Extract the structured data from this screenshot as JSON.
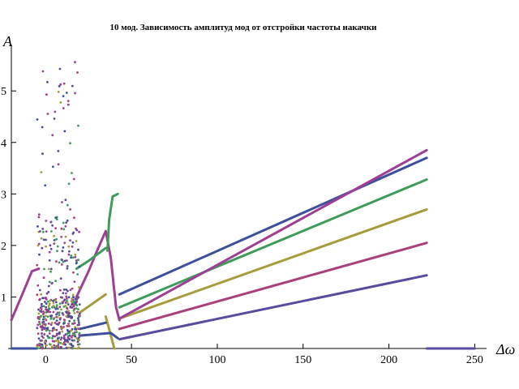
{
  "chart_data": {
    "type": "scatter",
    "title": "10 мод. Зависимость амплитуд мод от отстройки частоты накачки",
    "xlabel": "Δω",
    "ylabel": "A",
    "xlim": [
      -20,
      255
    ],
    "ylim": [
      0,
      5.9
    ],
    "x_ticks": [
      "0",
      "50",
      "100",
      "150",
      "200",
      "250"
    ],
    "x_tick_values": [
      0,
      50,
      100,
      150,
      200,
      250
    ],
    "y_ticks": [
      "1",
      "2",
      "3",
      "4",
      "5"
    ],
    "y_tick_values": [
      1,
      2,
      3,
      4,
      5
    ],
    "grid": false,
    "series": [
      {
        "color": "#5B4B9E",
        "points": [
          [
            43,
            0.18
          ],
          [
            222,
            1.42
          ]
        ]
      },
      {
        "color": "#A8407A",
        "points": [
          [
            43,
            0.38
          ],
          [
            222,
            2.05
          ]
        ]
      },
      {
        "color": "#A59C3C",
        "points": [
          [
            43,
            0.58
          ],
          [
            222,
            2.7
          ]
        ]
      },
      {
        "color": "#3F9B5A",
        "points": [
          [
            43,
            0.8
          ],
          [
            222,
            3.28
          ]
        ]
      },
      {
        "color": "#3E4F9C",
        "points": [
          [
            43,
            1.05
          ],
          [
            222,
            3.7
          ]
        ]
      },
      {
        "color": "#9C3F95",
        "points": [
          [
            43,
            0.58
          ],
          [
            222,
            3.85
          ]
        ]
      },
      {
        "color": "#9C3F95",
        "points": [
          [
            -20,
            0.55
          ],
          [
            -13,
            1.1
          ],
          [
            -8,
            1.5
          ],
          [
            -4,
            1.55
          ]
        ]
      },
      {
        "color": "#9C3F95",
        "points": [
          [
            18,
            1.0
          ],
          [
            25,
            1.5
          ],
          [
            30,
            1.9
          ],
          [
            35,
            2.28
          ],
          [
            38,
            1.75
          ],
          [
            41,
            0.8
          ],
          [
            43,
            0.55
          ]
        ]
      },
      {
        "color": "#3F9B5A",
        "points": [
          [
            18,
            1.55
          ],
          [
            25,
            1.7
          ],
          [
            35,
            1.95
          ]
        ]
      },
      {
        "color": "#3F9B5A",
        "points": [
          [
            36,
            1.9
          ],
          [
            37,
            2.5
          ],
          [
            39,
            2.95
          ],
          [
            42,
            3.0
          ]
        ]
      },
      {
        "color": "#A59C3C",
        "points": [
          [
            20,
            0.7
          ],
          [
            35,
            1.05
          ]
        ]
      },
      {
        "color": "#A59C3C",
        "points": [
          [
            35,
            0.62
          ],
          [
            40,
            0.0
          ]
        ]
      },
      {
        "color": "#3E4F9C",
        "points": [
          [
            20,
            0.38
          ],
          [
            35,
            0.5
          ]
        ]
      },
      {
        "color": "#3E4F9C",
        "points": [
          [
            20,
            0.25
          ],
          [
            38,
            0.3
          ],
          [
            42,
            0.2
          ]
        ]
      },
      {
        "color": "#3E4F9C",
        "points": [
          [
            -20,
            0.0
          ],
          [
            -5,
            0.0
          ]
        ]
      },
      {
        "color": "#5B4B9E",
        "points": [
          [
            222,
            0.0
          ],
          [
            250,
            0.0
          ]
        ]
      }
    ]
  }
}
